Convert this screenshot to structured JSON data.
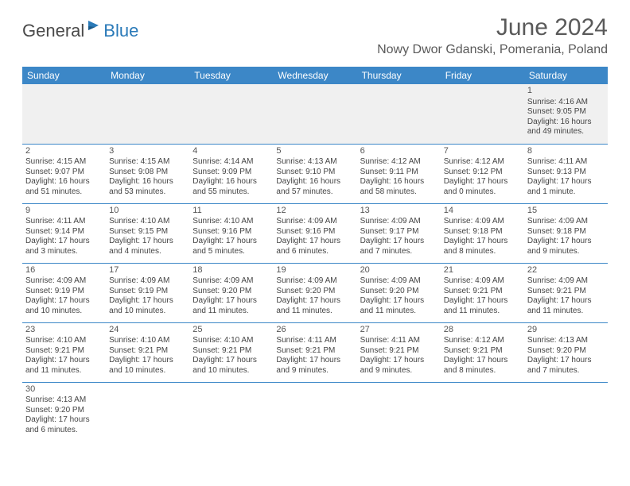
{
  "logo": {
    "general": "General",
    "blue": "Blue"
  },
  "title": "June 2024",
  "location": "Nowy Dwor Gdanski, Pomerania, Poland",
  "colors": {
    "header_bg": "#3c87c7",
    "header_text": "#ffffff",
    "body_text": "#444444",
    "logo_blue": "#2a7ab8",
    "rule": "#3c87c7"
  },
  "weekdays": [
    "Sunday",
    "Monday",
    "Tuesday",
    "Wednesday",
    "Thursday",
    "Friday",
    "Saturday"
  ],
  "weeks": [
    [
      null,
      null,
      null,
      null,
      null,
      null,
      {
        "n": "1",
        "sr": "4:16 AM",
        "ss": "9:05 PM",
        "dl": "16 hours and 49 minutes."
      }
    ],
    [
      {
        "n": "2",
        "sr": "4:15 AM",
        "ss": "9:07 PM",
        "dl": "16 hours and 51 minutes."
      },
      {
        "n": "3",
        "sr": "4:15 AM",
        "ss": "9:08 PM",
        "dl": "16 hours and 53 minutes."
      },
      {
        "n": "4",
        "sr": "4:14 AM",
        "ss": "9:09 PM",
        "dl": "16 hours and 55 minutes."
      },
      {
        "n": "5",
        "sr": "4:13 AM",
        "ss": "9:10 PM",
        "dl": "16 hours and 57 minutes."
      },
      {
        "n": "6",
        "sr": "4:12 AM",
        "ss": "9:11 PM",
        "dl": "16 hours and 58 minutes."
      },
      {
        "n": "7",
        "sr": "4:12 AM",
        "ss": "9:12 PM",
        "dl": "17 hours and 0 minutes."
      },
      {
        "n": "8",
        "sr": "4:11 AM",
        "ss": "9:13 PM",
        "dl": "17 hours and 1 minute."
      }
    ],
    [
      {
        "n": "9",
        "sr": "4:11 AM",
        "ss": "9:14 PM",
        "dl": "17 hours and 3 minutes."
      },
      {
        "n": "10",
        "sr": "4:10 AM",
        "ss": "9:15 PM",
        "dl": "17 hours and 4 minutes."
      },
      {
        "n": "11",
        "sr": "4:10 AM",
        "ss": "9:16 PM",
        "dl": "17 hours and 5 minutes."
      },
      {
        "n": "12",
        "sr": "4:09 AM",
        "ss": "9:16 PM",
        "dl": "17 hours and 6 minutes."
      },
      {
        "n": "13",
        "sr": "4:09 AM",
        "ss": "9:17 PM",
        "dl": "17 hours and 7 minutes."
      },
      {
        "n": "14",
        "sr": "4:09 AM",
        "ss": "9:18 PM",
        "dl": "17 hours and 8 minutes."
      },
      {
        "n": "15",
        "sr": "4:09 AM",
        "ss": "9:18 PM",
        "dl": "17 hours and 9 minutes."
      }
    ],
    [
      {
        "n": "16",
        "sr": "4:09 AM",
        "ss": "9:19 PM",
        "dl": "17 hours and 10 minutes."
      },
      {
        "n": "17",
        "sr": "4:09 AM",
        "ss": "9:19 PM",
        "dl": "17 hours and 10 minutes."
      },
      {
        "n": "18",
        "sr": "4:09 AM",
        "ss": "9:20 PM",
        "dl": "17 hours and 11 minutes."
      },
      {
        "n": "19",
        "sr": "4:09 AM",
        "ss": "9:20 PM",
        "dl": "17 hours and 11 minutes."
      },
      {
        "n": "20",
        "sr": "4:09 AM",
        "ss": "9:20 PM",
        "dl": "17 hours and 11 minutes."
      },
      {
        "n": "21",
        "sr": "4:09 AM",
        "ss": "9:21 PM",
        "dl": "17 hours and 11 minutes."
      },
      {
        "n": "22",
        "sr": "4:09 AM",
        "ss": "9:21 PM",
        "dl": "17 hours and 11 minutes."
      }
    ],
    [
      {
        "n": "23",
        "sr": "4:10 AM",
        "ss": "9:21 PM",
        "dl": "17 hours and 11 minutes."
      },
      {
        "n": "24",
        "sr": "4:10 AM",
        "ss": "9:21 PM",
        "dl": "17 hours and 10 minutes."
      },
      {
        "n": "25",
        "sr": "4:10 AM",
        "ss": "9:21 PM",
        "dl": "17 hours and 10 minutes."
      },
      {
        "n": "26",
        "sr": "4:11 AM",
        "ss": "9:21 PM",
        "dl": "17 hours and 9 minutes."
      },
      {
        "n": "27",
        "sr": "4:11 AM",
        "ss": "9:21 PM",
        "dl": "17 hours and 9 minutes."
      },
      {
        "n": "28",
        "sr": "4:12 AM",
        "ss": "9:21 PM",
        "dl": "17 hours and 8 minutes."
      },
      {
        "n": "29",
        "sr": "4:13 AM",
        "ss": "9:20 PM",
        "dl": "17 hours and 7 minutes."
      }
    ],
    [
      {
        "n": "30",
        "sr": "4:13 AM",
        "ss": "9:20 PM",
        "dl": "17 hours and 6 minutes."
      },
      null,
      null,
      null,
      null,
      null,
      null
    ]
  ],
  "labels": {
    "sunrise": "Sunrise:",
    "sunset": "Sunset:",
    "daylight": "Daylight:"
  }
}
